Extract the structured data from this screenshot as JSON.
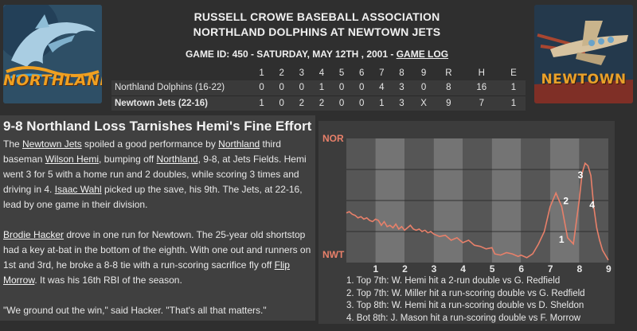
{
  "header": {
    "league": "RUSSELL CROWE BASEBALL ASSOCIATION",
    "matchup": "NORTHLAND DOLPHINS AT NEWTOWN JETS",
    "game_info": "GAME ID: 450 - SATURDAY, MAY 12TH , 2001 -",
    "game_log_link": "GAME LOG"
  },
  "logos": {
    "left": {
      "icon": "dolphin-icon",
      "text": "NORTHLAND",
      "color": "#f0a021"
    },
    "right": {
      "icon": "airplane-icon",
      "text": "NEWTOWN",
      "color": "#e8a12a"
    }
  },
  "scoreboard": {
    "headers": [
      "1",
      "2",
      "3",
      "4",
      "5",
      "6",
      "7",
      "8",
      "9",
      "R",
      "H",
      "E"
    ],
    "rows": [
      {
        "team": "Northland Dolphins (16-22)",
        "cells": [
          "0",
          "0",
          "0",
          "1",
          "0",
          "0",
          "4",
          "3",
          "0",
          "8",
          "16",
          "1"
        ]
      },
      {
        "team": "Newtown Jets (22-16)",
        "cells": [
          "1",
          "0",
          "2",
          "2",
          "0",
          "0",
          "1",
          "3",
          "X",
          "9",
          "7",
          "1"
        ]
      }
    ]
  },
  "recap": {
    "headline": "9-8 Northland Loss Tarnishes Hemi's Fine Effort",
    "p1": [
      {
        "t": "The "
      },
      {
        "t": "Newtown Jets",
        "link": true
      },
      {
        "t": " spoiled a good performance by "
      },
      {
        "t": "Northland",
        "link": true
      },
      {
        "t": " third baseman "
      },
      {
        "t": "Wilson Hemi",
        "link": true
      },
      {
        "t": ", bumping off "
      },
      {
        "t": "Northland",
        "link": true
      },
      {
        "t": ", 9-8, at Jets Fields. Hemi went 3 for 5 with a home run and 2 doubles, while scoring 3 times and driving in 4. "
      },
      {
        "t": "Isaac Wahl",
        "link": true
      },
      {
        "t": " picked up the save, his 9th. The Jets, at 22-16, lead by one game in their division."
      }
    ],
    "p2": [
      {
        "t": "Brodie Hacker",
        "link": true
      },
      {
        "t": " drove in one run for Newtown. The 25-year old shortstop had a key at-bat in the bottom of the eighth. With one out and runners on 1st and 3rd, he broke a 8-8 tie with a run-scoring sacrifice fly off "
      },
      {
        "t": "Flip Morrow",
        "link": true
      },
      {
        "t": ". It was his 16th RBI of the season."
      }
    ],
    "p3": [
      {
        "t": "\"We ground out the win,\" said Hacker. \"That's all that matters.\""
      }
    ]
  },
  "chart_data": {
    "type": "line",
    "title": "",
    "y_top_label": "NOR",
    "y_bottom_label": "NWT",
    "x_labels": [
      "1",
      "2",
      "3",
      "4",
      "5",
      "6",
      "7",
      "8",
      "9"
    ],
    "x_range": [
      0,
      9
    ],
    "y_range": [
      0,
      1
    ],
    "line_color": "#e8806a",
    "label_color": "#e8806a",
    "x": [
      0,
      0.1,
      0.2,
      0.3,
      0.4,
      0.5,
      0.6,
      0.7,
      0.8,
      0.9,
      1.0,
      1.1,
      1.2,
      1.3,
      1.4,
      1.5,
      1.6,
      1.7,
      1.8,
      1.9,
      2.0,
      2.1,
      2.2,
      2.3,
      2.4,
      2.5,
      2.6,
      2.7,
      2.8,
      2.9,
      3.0,
      3.2,
      3.4,
      3.6,
      3.8,
      4.0,
      4.2,
      4.4,
      4.6,
      4.8,
      5.0,
      5.1,
      5.3,
      5.5,
      5.7,
      5.9,
      6.0,
      6.2,
      6.4,
      6.6,
      6.8,
      7.0,
      7.2,
      7.4,
      7.6,
      7.8,
      8.0,
      8.1,
      8.2,
      8.3,
      8.4,
      8.5,
      8.6,
      8.7,
      8.8,
      8.9,
      9.0
    ],
    "y": [
      0.4,
      0.41,
      0.39,
      0.38,
      0.36,
      0.37,
      0.35,
      0.36,
      0.34,
      0.33,
      0.35,
      0.34,
      0.3,
      0.33,
      0.29,
      0.3,
      0.28,
      0.31,
      0.27,
      0.29,
      0.26,
      0.28,
      0.3,
      0.27,
      0.26,
      0.27,
      0.25,
      0.26,
      0.24,
      0.25,
      0.23,
      0.21,
      0.22,
      0.18,
      0.2,
      0.16,
      0.18,
      0.14,
      0.13,
      0.11,
      0.12,
      0.07,
      0.06,
      0.08,
      0.07,
      0.05,
      0.06,
      0.04,
      0.07,
      0.15,
      0.25,
      0.45,
      0.56,
      0.45,
      0.2,
      0.15,
      0.5,
      0.72,
      0.8,
      0.78,
      0.7,
      0.45,
      0.28,
      0.18,
      0.1,
      0.06,
      0.02
    ],
    "annotations": [
      {
        "label": "1",
        "x": 7.3,
        "y": 0.16
      },
      {
        "label": "2",
        "x": 7.45,
        "y": 0.47
      },
      {
        "label": "3",
        "x": 7.95,
        "y": 0.68
      },
      {
        "label": "4",
        "x": 8.35,
        "y": 0.44
      }
    ],
    "notes": [
      "1. Top 7th: W. Hemi hit a 2-run double vs G. Redfield",
      "2. Top 7th: W. Miller hit a run-scoring double vs G. Redfield",
      "3. Top 8th: W. Hemi hit a run-scoring double vs D. Sheldon",
      "4. Bot 8th: J. Mason hit a run-scoring double vs F. Morrow"
    ]
  }
}
